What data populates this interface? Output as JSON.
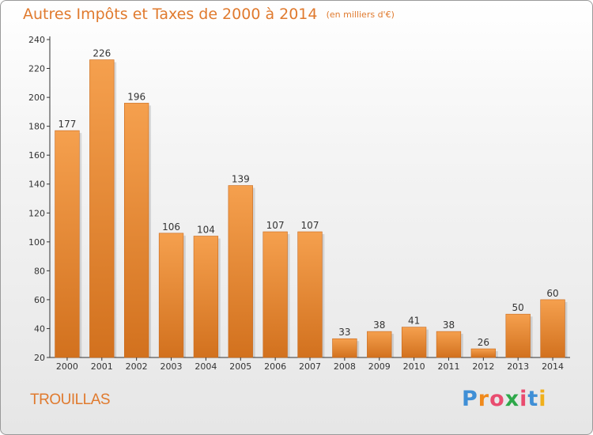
{
  "chart_data": {
    "type": "bar",
    "title": "Autres Impôts et Taxes de 2000 à 2014",
    "unit_note": "(en milliers d'€)",
    "categories": [
      "2000",
      "2001",
      "2002",
      "2003",
      "2004",
      "2005",
      "2006",
      "2007",
      "2008",
      "2009",
      "2010",
      "2011",
      "2012",
      "2013",
      "2014"
    ],
    "values": [
      177,
      226,
      196,
      106,
      104,
      139,
      107,
      107,
      33,
      38,
      41,
      38,
      26,
      50,
      60
    ],
    "ylim": [
      20,
      240
    ],
    "yticks": [
      20,
      40,
      60,
      80,
      100,
      120,
      140,
      160,
      180,
      200,
      220,
      240
    ],
    "grid": false,
    "bar_color": "#f5a04e",
    "bar_color_dark": "#d2711e",
    "text_color": "#e07a2e"
  },
  "footer": {
    "commune": "TROUILLAS",
    "logo": "Proxiti",
    "logo_colors": [
      "#3f8fd6",
      "#f08a1c",
      "#e94c6f",
      "#2ea84a",
      "#e94c6f",
      "#3f8fd6",
      "#f0b01c"
    ]
  }
}
